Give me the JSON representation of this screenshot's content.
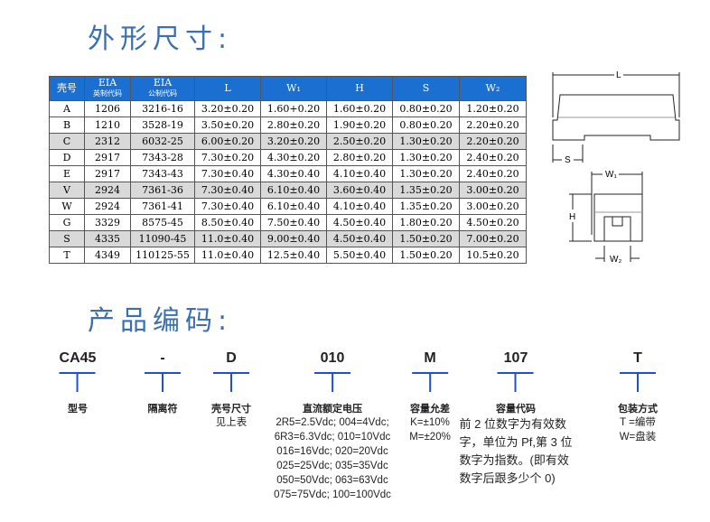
{
  "section1_title": "外形尺寸:",
  "section2_title": "产品编码:",
  "table": {
    "headers": [
      {
        "main": "壳号"
      },
      {
        "main": "EIA",
        "sub": "英制代码"
      },
      {
        "main": "EIA",
        "sub": "公制代码"
      },
      {
        "main": "L"
      },
      {
        "main": "W₁"
      },
      {
        "main": "H"
      },
      {
        "main": "S"
      },
      {
        "main": "W₂"
      }
    ],
    "rows": [
      [
        "A",
        "1206",
        "3216-16",
        "3.20±0.20",
        "1.60+0.20",
        "1.60±0.20",
        "0.80±0.20",
        "1.20±0.20"
      ],
      [
        "B",
        "1210",
        "3528-19",
        "3.50±0.20",
        "2.80±0.20",
        "1.90±0.20",
        "0.80±0.20",
        "2.20±0.20"
      ],
      [
        "C",
        "2312",
        "6032-25",
        "6.00±0.20",
        "3.20±0.20",
        "2.50±0.20",
        "1.30±0.20",
        "2.20±0.20"
      ],
      [
        "D",
        "2917",
        "7343-28",
        "7.30±0.20",
        "4.30±0.20",
        "2.80±0.20",
        "1.30±0.20",
        "2.40±0.20"
      ],
      [
        "E",
        "2917",
        "7343-43",
        "7.30±0.40",
        "4.30±0.40",
        "4.10±0.40",
        "1.30±0.20",
        "2.40±0.20"
      ],
      [
        "V",
        "2924",
        "7361-36",
        "7.30±0.40",
        "6.10±0.40",
        "3.60±0.40",
        "1.35±0.20",
        "3.00±0.20"
      ],
      [
        "W",
        "2924",
        "7361-41",
        "7.30±0.40",
        "6.10±0.40",
        "4.10±0.40",
        "1.35±0.20",
        "3.00±0.20"
      ],
      [
        "G",
        "3329",
        "8575-45",
        "8.50±0.40",
        "7.50±0.40",
        "4.50±0.40",
        "1.80±0.20",
        "4.50±0.20"
      ],
      [
        "S",
        "4335",
        "11090-45",
        "11.0±0.40",
        "9.00±0.40",
        "4.50±0.40",
        "1.50±0.20",
        "7.00±0.20"
      ],
      [
        "T",
        "4349",
        "110125-55",
        "11.0±0.40",
        "12.5±0.40",
        "5.50±0.40",
        "1.50±0.20",
        "10.5±0.20"
      ]
    ]
  },
  "diagram": {
    "L": "L",
    "S": "S",
    "W1": "W₁",
    "H": "H",
    "W2": "W₂"
  },
  "code": [
    {
      "part": "CA45",
      "label": "型号",
      "desc": []
    },
    {
      "part": "-",
      "label": "隔离符",
      "desc": []
    },
    {
      "part": "D",
      "label": "壳号尺寸",
      "desc": [
        "见上表"
      ]
    },
    {
      "part": "010",
      "label": "直流额定电压",
      "desc": [
        "2R5=2.5Vdc; 004=4Vdc;",
        "6R3=6.3Vdc; 010=10Vdc",
        "016=16Vdc; 020=20Vdc",
        "025=25Vdc; 035=35Vdc",
        "050=50Vdc; 063=63Vdc",
        "075=75Vdc; 100=100Vdc"
      ]
    },
    {
      "part": "M",
      "label": "容量允差",
      "desc": [
        "K=±10%",
        "M=±20%"
      ]
    },
    {
      "part": "107",
      "label": "容量代码",
      "desc": [
        "前 2 位数字为有效数",
        "字，单位为 Pf,第 3 位",
        "数字为指数。(即有效",
        "数字后跟多少个 0)"
      ]
    },
    {
      "part": "T",
      "label": "包装方式",
      "desc": [
        "T =编带",
        "W=盘装"
      ]
    }
  ],
  "colors": {
    "title": "#3b6fb0",
    "header_bg": "#1a6fd0",
    "stripe": "#d9d9d9",
    "tee": "#1f4fd8"
  }
}
